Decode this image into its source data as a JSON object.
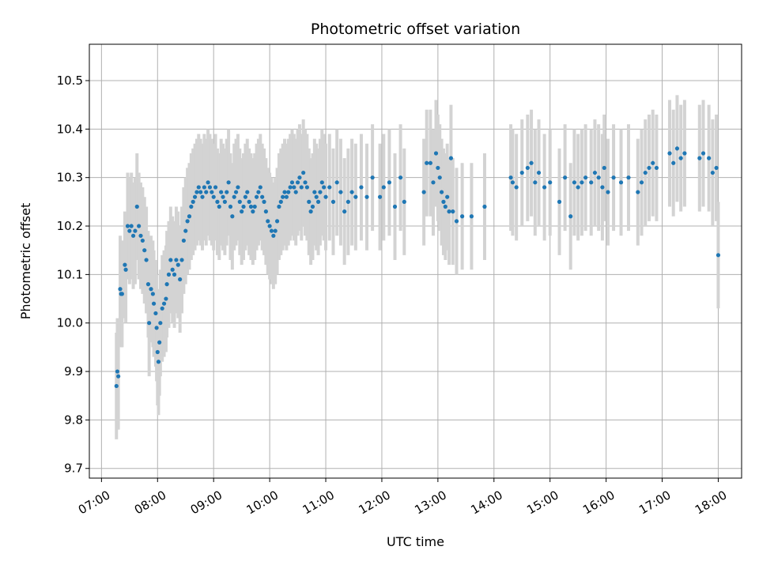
{
  "chart_data": {
    "type": "scatter",
    "title": "Photometric offset variation",
    "xlabel": "UTC time",
    "ylabel": "Photometric offset",
    "x_tick_labels": [
      "07:00",
      "08:00",
      "09:00",
      "10:00",
      "11:00",
      "12:00",
      "13:00",
      "14:00",
      "15:00",
      "16:00",
      "17:00",
      "18:00"
    ],
    "y_tick_labels": [
      "9.7",
      "9.8",
      "9.9",
      "10.0",
      "10.1",
      "10.2",
      "10.3",
      "10.4",
      "10.5"
    ],
    "xlim": [
      "06:47",
      "18:25"
    ],
    "ylim": [
      9.68,
      10.575
    ],
    "grid": true,
    "colors": {
      "points": "#1f77b4",
      "error_bars": "#d3d3d3",
      "grid": "#b0b0b0"
    },
    "series": [
      {
        "error_bar_halfwidth": 0.11,
        "points": [
          {
            "x": "07:16",
            "y": 9.87
          },
          {
            "x": "07:17",
            "y": 9.9
          },
          {
            "x": "07:18",
            "y": 9.89
          },
          {
            "x": "07:20",
            "y": 10.07
          },
          {
            "x": "07:21",
            "y": 10.06
          },
          {
            "x": "07:22",
            "y": 10.06
          },
          {
            "x": "07:25",
            "y": 10.12
          },
          {
            "x": "07:26",
            "y": 10.11
          },
          {
            "x": "07:28",
            "y": 10.2
          },
          {
            "x": "07:30",
            "y": 10.19
          },
          {
            "x": "07:32",
            "y": 10.2
          },
          {
            "x": "07:34",
            "y": 10.18
          },
          {
            "x": "07:36",
            "y": 10.19
          },
          {
            "x": "07:38",
            "y": 10.24
          },
          {
            "x": "07:40",
            "y": 10.2
          },
          {
            "x": "07:42",
            "y": 10.18
          },
          {
            "x": "07:44",
            "y": 10.17
          },
          {
            "x": "07:46",
            "y": 10.15
          },
          {
            "x": "07:48",
            "y": 10.13
          },
          {
            "x": "07:50",
            "y": 10.08
          },
          {
            "x": "07:51",
            "y": 10.0
          },
          {
            "x": "07:53",
            "y": 10.07
          },
          {
            "x": "07:55",
            "y": 10.06
          },
          {
            "x": "07:56",
            "y": 10.04
          },
          {
            "x": "07:58",
            "y": 10.02
          },
          {
            "x": "07:59",
            "y": 9.99
          },
          {
            "x": "08:00",
            "y": 9.94
          },
          {
            "x": "08:01",
            "y": 9.92
          },
          {
            "x": "08:02",
            "y": 9.96
          },
          {
            "x": "08:03",
            "y": 10.0
          },
          {
            "x": "08:05",
            "y": 10.03
          },
          {
            "x": "08:07",
            "y": 10.04
          },
          {
            "x": "08:09",
            "y": 10.05
          },
          {
            "x": "08:10",
            "y": 10.08
          },
          {
            "x": "08:12",
            "y": 10.1
          },
          {
            "x": "08:14",
            "y": 10.13
          },
          {
            "x": "08:16",
            "y": 10.11
          },
          {
            "x": "08:18",
            "y": 10.1
          },
          {
            "x": "08:20",
            "y": 10.13
          },
          {
            "x": "08:22",
            "y": 10.12
          },
          {
            "x": "08:24",
            "y": 10.09
          },
          {
            "x": "08:26",
            "y": 10.13
          },
          {
            "x": "08:28",
            "y": 10.17
          },
          {
            "x": "08:30",
            "y": 10.19
          },
          {
            "x": "08:32",
            "y": 10.21
          },
          {
            "x": "08:34",
            "y": 10.22
          },
          {
            "x": "08:36",
            "y": 10.24
          },
          {
            "x": "08:38",
            "y": 10.25
          },
          {
            "x": "08:40",
            "y": 10.26
          },
          {
            "x": "08:42",
            "y": 10.27
          },
          {
            "x": "08:44",
            "y": 10.28
          },
          {
            "x": "08:46",
            "y": 10.27
          },
          {
            "x": "08:48",
            "y": 10.26
          },
          {
            "x": "08:50",
            "y": 10.28
          },
          {
            "x": "08:52",
            "y": 10.27
          },
          {
            "x": "08:54",
            "y": 10.29
          },
          {
            "x": "08:56",
            "y": 10.28
          },
          {
            "x": "08:58",
            "y": 10.27
          },
          {
            "x": "09:00",
            "y": 10.26
          },
          {
            "x": "09:02",
            "y": 10.28
          },
          {
            "x": "09:04",
            "y": 10.25
          },
          {
            "x": "09:06",
            "y": 10.24
          },
          {
            "x": "09:08",
            "y": 10.27
          },
          {
            "x": "09:10",
            "y": 10.26
          },
          {
            "x": "09:12",
            "y": 10.25
          },
          {
            "x": "09:14",
            "y": 10.27
          },
          {
            "x": "09:16",
            "y": 10.29
          },
          {
            "x": "09:18",
            "y": 10.24
          },
          {
            "x": "09:20",
            "y": 10.22
          },
          {
            "x": "09:22",
            "y": 10.26
          },
          {
            "x": "09:24",
            "y": 10.27
          },
          {
            "x": "09:26",
            "y": 10.28
          },
          {
            "x": "09:28",
            "y": 10.25
          },
          {
            "x": "09:30",
            "y": 10.23
          },
          {
            "x": "09:32",
            "y": 10.24
          },
          {
            "x": "09:34",
            "y": 10.26
          },
          {
            "x": "09:36",
            "y": 10.27
          },
          {
            "x": "09:38",
            "y": 10.25
          },
          {
            "x": "09:40",
            "y": 10.24
          },
          {
            "x": "09:42",
            "y": 10.23
          },
          {
            "x": "09:44",
            "y": 10.24
          },
          {
            "x": "09:46",
            "y": 10.26
          },
          {
            "x": "09:48",
            "y": 10.27
          },
          {
            "x": "09:50",
            "y": 10.28
          },
          {
            "x": "09:52",
            "y": 10.26
          },
          {
            "x": "09:54",
            "y": 10.25
          },
          {
            "x": "09:56",
            "y": 10.23
          },
          {
            "x": "09:58",
            "y": 10.21
          },
          {
            "x": "10:00",
            "y": 10.2
          },
          {
            "x": "10:02",
            "y": 10.19
          },
          {
            "x": "10:04",
            "y": 10.18
          },
          {
            "x": "10:06",
            "y": 10.19
          },
          {
            "x": "10:08",
            "y": 10.21
          },
          {
            "x": "10:10",
            "y": 10.24
          },
          {
            "x": "10:12",
            "y": 10.25
          },
          {
            "x": "10:14",
            "y": 10.26
          },
          {
            "x": "10:16",
            "y": 10.27
          },
          {
            "x": "10:18",
            "y": 10.26
          },
          {
            "x": "10:20",
            "y": 10.27
          },
          {
            "x": "10:22",
            "y": 10.28
          },
          {
            "x": "10:24",
            "y": 10.29
          },
          {
            "x": "10:26",
            "y": 10.28
          },
          {
            "x": "10:28",
            "y": 10.27
          },
          {
            "x": "10:30",
            "y": 10.29
          },
          {
            "x": "10:32",
            "y": 10.3
          },
          {
            "x": "10:34",
            "y": 10.28
          },
          {
            "x": "10:36",
            "y": 10.31
          },
          {
            "x": "10:38",
            "y": 10.29
          },
          {
            "x": "10:40",
            "y": 10.28
          },
          {
            "x": "10:42",
            "y": 10.25
          },
          {
            "x": "10:44",
            "y": 10.23
          },
          {
            "x": "10:46",
            "y": 10.24
          },
          {
            "x": "10:48",
            "y": 10.27
          },
          {
            "x": "10:50",
            "y": 10.26
          },
          {
            "x": "10:52",
            "y": 10.25
          },
          {
            "x": "10:54",
            "y": 10.27
          },
          {
            "x": "10:56",
            "y": 10.29
          },
          {
            "x": "10:58",
            "y": 10.28
          },
          {
            "x": "11:00",
            "y": 10.26
          },
          {
            "x": "11:04",
            "y": 10.28
          },
          {
            "x": "11:08",
            "y": 10.25
          },
          {
            "x": "11:12",
            "y": 10.29
          },
          {
            "x": "11:16",
            "y": 10.27
          },
          {
            "x": "11:20",
            "y": 10.23
          },
          {
            "x": "11:24",
            "y": 10.25
          },
          {
            "x": "11:28",
            "y": 10.27
          },
          {
            "x": "11:32",
            "y": 10.26
          },
          {
            "x": "11:38",
            "y": 10.28
          },
          {
            "x": "11:44",
            "y": 10.26
          },
          {
            "x": "11:50",
            "y": 10.3
          },
          {
            "x": "11:58",
            "y": 10.26
          },
          {
            "x": "12:02",
            "y": 10.28
          },
          {
            "x": "12:08",
            "y": 10.29
          },
          {
            "x": "12:14",
            "y": 10.24
          },
          {
            "x": "12:20",
            "y": 10.3
          },
          {
            "x": "12:24",
            "y": 10.25
          },
          {
            "x": "12:45",
            "y": 10.27
          },
          {
            "x": "12:48",
            "y": 10.33
          },
          {
            "x": "12:52",
            "y": 10.33
          },
          {
            "x": "12:55",
            "y": 10.29
          },
          {
            "x": "12:58",
            "y": 10.35
          },
          {
            "x": "13:00",
            "y": 10.32
          },
          {
            "x": "13:02",
            "y": 10.3
          },
          {
            "x": "13:04",
            "y": 10.27
          },
          {
            "x": "13:06",
            "y": 10.25
          },
          {
            "x": "13:08",
            "y": 10.24
          },
          {
            "x": "13:10",
            "y": 10.26
          },
          {
            "x": "13:12",
            "y": 10.23
          },
          {
            "x": "13:14",
            "y": 10.34
          },
          {
            "x": "13:16",
            "y": 10.23
          },
          {
            "x": "13:20",
            "y": 10.21
          },
          {
            "x": "13:26",
            "y": 10.22
          },
          {
            "x": "13:36",
            "y": 10.22
          },
          {
            "x": "13:50",
            "y": 10.24
          },
          {
            "x": "14:18",
            "y": 10.3
          },
          {
            "x": "14:20",
            "y": 10.29
          },
          {
            "x": "14:24",
            "y": 10.28
          },
          {
            "x": "14:30",
            "y": 10.31
          },
          {
            "x": "14:36",
            "y": 10.32
          },
          {
            "x": "14:40",
            "y": 10.33
          },
          {
            "x": "14:44",
            "y": 10.29
          },
          {
            "x": "14:48",
            "y": 10.31
          },
          {
            "x": "14:54",
            "y": 10.28
          },
          {
            "x": "15:00",
            "y": 10.29
          },
          {
            "x": "15:10",
            "y": 10.25
          },
          {
            "x": "15:16",
            "y": 10.3
          },
          {
            "x": "15:22",
            "y": 10.22
          },
          {
            "x": "15:26",
            "y": 10.29
          },
          {
            "x": "15:30",
            "y": 10.28
          },
          {
            "x": "15:34",
            "y": 10.29
          },
          {
            "x": "15:38",
            "y": 10.3
          },
          {
            "x": "15:44",
            "y": 10.29
          },
          {
            "x": "15:48",
            "y": 10.31
          },
          {
            "x": "15:52",
            "y": 10.3
          },
          {
            "x": "15:56",
            "y": 10.28
          },
          {
            "x": "15:58",
            "y": 10.32
          },
          {
            "x": "16:02",
            "y": 10.27
          },
          {
            "x": "16:08",
            "y": 10.3
          },
          {
            "x": "16:16",
            "y": 10.29
          },
          {
            "x": "16:24",
            "y": 10.3
          },
          {
            "x": "16:34",
            "y": 10.27
          },
          {
            "x": "16:38",
            "y": 10.29
          },
          {
            "x": "16:42",
            "y": 10.31
          },
          {
            "x": "16:46",
            "y": 10.32
          },
          {
            "x": "16:50",
            "y": 10.33
          },
          {
            "x": "16:54",
            "y": 10.32
          },
          {
            "x": "17:08",
            "y": 10.35
          },
          {
            "x": "17:12",
            "y": 10.33
          },
          {
            "x": "17:16",
            "y": 10.36
          },
          {
            "x": "17:20",
            "y": 10.34
          },
          {
            "x": "17:24",
            "y": 10.35
          },
          {
            "x": "17:40",
            "y": 10.34
          },
          {
            "x": "17:44",
            "y": 10.35
          },
          {
            "x": "17:50",
            "y": 10.34
          },
          {
            "x": "17:54",
            "y": 10.31
          },
          {
            "x": "17:58",
            "y": 10.32
          },
          {
            "x": "18:00",
            "y": 10.14
          }
        ]
      }
    ]
  }
}
